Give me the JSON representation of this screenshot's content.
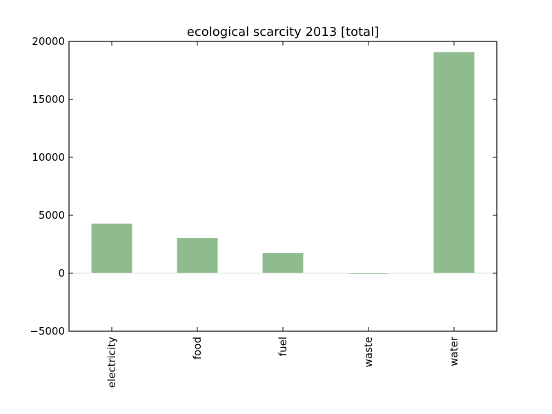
{
  "chart_data": {
    "type": "bar",
    "title": "ecological scarcity 2013 [total]",
    "xlabel": "",
    "ylabel": "",
    "categories": [
      "electricity",
      "food",
      "fuel",
      "waste",
      "water"
    ],
    "values": [
      4300,
      3050,
      1750,
      -80,
      19100
    ],
    "ylim": [
      -5000,
      20000
    ],
    "yticks": [
      -5000,
      0,
      5000,
      10000,
      15000,
      20000
    ],
    "ytick_labels": [
      "−5000",
      "0",
      "5000",
      "10000",
      "15000",
      "20000"
    ],
    "bar_color": "#8fbc8f",
    "legend": "none",
    "grid": false
  }
}
